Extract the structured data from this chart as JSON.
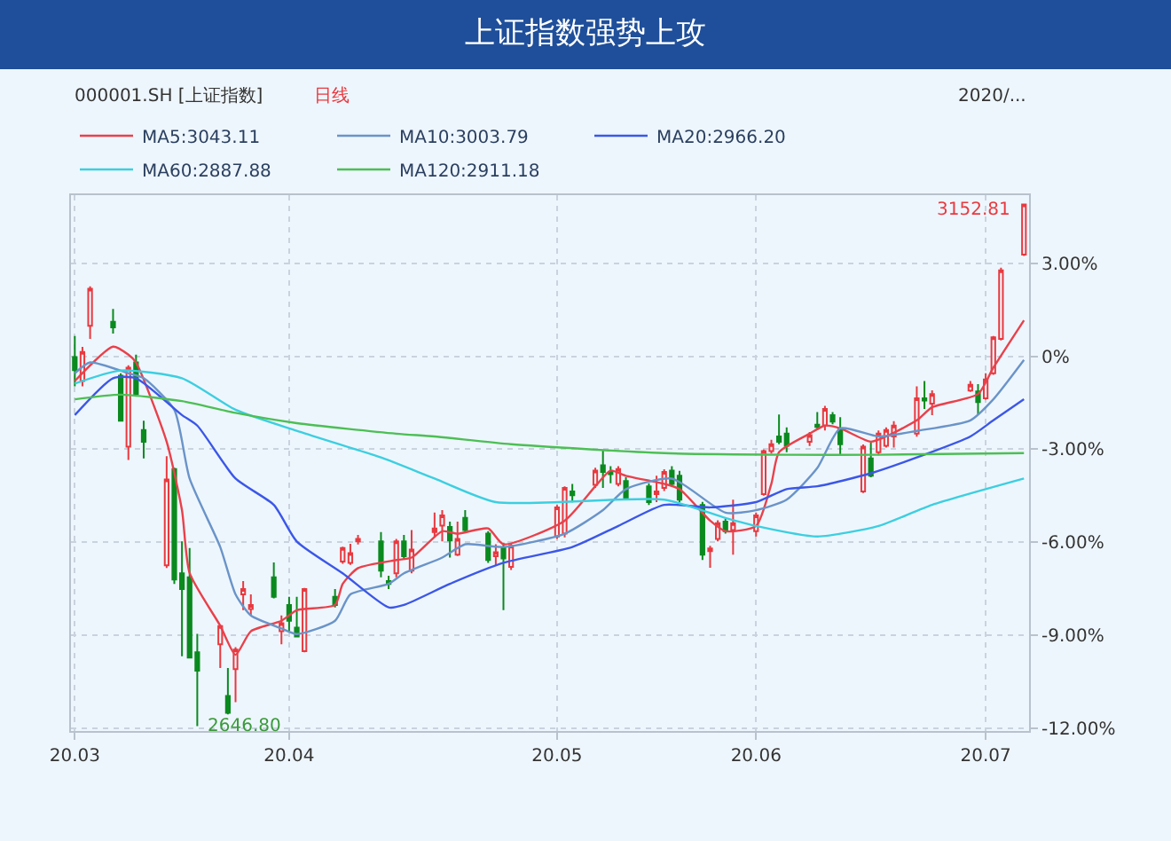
{
  "chart_data": {
    "type": "candlestick",
    "title": "上证指数强势上攻",
    "annotations": [
      "000001.SH [上证指数]",
      "日线",
      "2020/...",
      {
        "text": "3152.81",
        "x": "2020-07-06",
        "y": 4.93
      },
      {
        "text": "2646.80",
        "x": "2020-03-20",
        "y": -11.94
      }
    ],
    "x": [
      "2020-03-04",
      "2020-03-05",
      "2020-03-06",
      "2020-03-09",
      "2020-03-10",
      "2020-03-11",
      "2020-03-12",
      "2020-03-13",
      "2020-03-16",
      "2020-03-17",
      "2020-03-18",
      "2020-03-19",
      "2020-03-20",
      "2020-03-23",
      "2020-03-24",
      "2020-03-25",
      "2020-03-26",
      "2020-03-27",
      "2020-03-30",
      "2020-03-31",
      "2020-04-01",
      "2020-04-02",
      "2020-04-03",
      "2020-04-07",
      "2020-04-08",
      "2020-04-09",
      "2020-04-10",
      "2020-04-13",
      "2020-04-14",
      "2020-04-15",
      "2020-04-16",
      "2020-04-17",
      "2020-04-20",
      "2020-04-21",
      "2020-04-22",
      "2020-04-23",
      "2020-04-24",
      "2020-04-27",
      "2020-04-28",
      "2020-04-29",
      "2020-04-30",
      "2020-05-06",
      "2020-05-07",
      "2020-05-08",
      "2020-05-11",
      "2020-05-12",
      "2020-05-13",
      "2020-05-14",
      "2020-05-15",
      "2020-05-18",
      "2020-05-19",
      "2020-05-20",
      "2020-05-21",
      "2020-05-22",
      "2020-05-25",
      "2020-05-26",
      "2020-05-27",
      "2020-05-28",
      "2020-05-29",
      "2020-06-01",
      "2020-06-02",
      "2020-06-03",
      "2020-06-04",
      "2020-06-05",
      "2020-06-08",
      "2020-06-09",
      "2020-06-10",
      "2020-06-11",
      "2020-06-12",
      "2020-06-15",
      "2020-06-16",
      "2020-06-17",
      "2020-06-18",
      "2020-06-19",
      "2020-06-22",
      "2020-06-23",
      "2020-06-24",
      "2020-06-29",
      "2020-06-30",
      "2020-07-01",
      "2020-07-02",
      "2020-07-03",
      "2020-07-06"
    ],
    "ohlc": [
      [
        -0.03,
        0.65,
        -0.97,
        -0.45
      ],
      [
        -0.8,
        0.3,
        -0.97,
        0.14
      ],
      [
        0.98,
        2.26,
        0.56,
        2.18
      ],
      [
        1.11,
        1.53,
        0.73,
        0.93
      ],
      [
        -0.63,
        -0.55,
        -2.1,
        -2.08
      ],
      [
        -2.92,
        -0.29,
        -3.35,
        -0.37
      ],
      [
        -0.2,
        0.05,
        -1.25,
        -1.22
      ],
      [
        -2.38,
        -2.08,
        -3.3,
        -2.76
      ],
      [
        -6.75,
        -3.23,
        -6.84,
        -3.98
      ],
      [
        -3.64,
        -3.6,
        -7.35,
        -7.21
      ],
      [
        -7.01,
        -5.98,
        -9.69,
        -7.52
      ],
      [
        -7.14,
        -6.19,
        -9.75,
        -9.73
      ],
      [
        -9.56,
        -8.96,
        -11.94,
        -10.15
      ],
      [
        -9.3,
        -8.67,
        -10.07,
        -8.71
      ],
      [
        -10.97,
        -10.07,
        -11.56,
        -11.51
      ],
      [
        -10.1,
        -9.39,
        -11.17,
        -9.47
      ],
      [
        -7.69,
        -7.26,
        -8.2,
        -7.52
      ],
      [
        -8.16,
        -7.69,
        -8.37,
        -8.03
      ],
      [
        -7.14,
        -6.66,
        -7.82,
        -7.77
      ],
      [
        -8.88,
        -8.37,
        -9.3,
        -8.62
      ],
      [
        -8.03,
        -7.77,
        -8.88,
        -8.54
      ],
      [
        -8.76,
        -7.77,
        -9.06,
        -9.05
      ],
      [
        -9.52,
        -7.48,
        -9.56,
        -7.52
      ],
      [
        -7.77,
        -7.52,
        -8.11,
        -8.03
      ],
      [
        -6.63,
        -6.15,
        -6.7,
        -6.19
      ],
      [
        -6.67,
        -6.06,
        -6.74,
        -6.36
      ],
      [
        -5.98,
        -5.77,
        -6.08,
        -5.9
      ],
      [
        -5.98,
        -5.68,
        -7.14,
        -6.92
      ],
      [
        -7.26,
        -7.09,
        -7.52,
        -7.35
      ],
      [
        -7.01,
        -5.9,
        -7.14,
        -5.98
      ],
      [
        -5.98,
        -5.77,
        -6.54,
        -6.46
      ],
      [
        -6.92,
        -5.61,
        -7.01,
        -6.24
      ],
      [
        -5.68,
        -5.05,
        -5.85,
        -5.56
      ],
      [
        -5.47,
        -4.97,
        -5.98,
        -5.14
      ],
      [
        -5.51,
        -5.34,
        -6.5,
        -5.95
      ],
      [
        -6.41,
        -5.34,
        -6.45,
        -5.9
      ],
      [
        -5.22,
        -4.97,
        -5.7,
        -5.61
      ],
      [
        -5.73,
        -5.65,
        -6.67,
        -6.58
      ],
      [
        -6.46,
        -6.07,
        -6.75,
        -6.33
      ],
      [
        -6.19,
        -6.02,
        -8.2,
        -6.53
      ],
      [
        -6.8,
        -6.05,
        -6.9,
        -6.12
      ],
      [
        -5.82,
        -4.8,
        -5.9,
        -4.88
      ],
      [
        -5.73,
        -4.2,
        -5.85,
        -4.25
      ],
      [
        -4.37,
        -4.12,
        -4.72,
        -4.49
      ],
      [
        -4.15,
        -3.6,
        -4.25,
        -3.69
      ],
      [
        -3.52,
        -3.04,
        -4.25,
        -3.74
      ],
      [
        -3.74,
        -3.55,
        -4.1,
        -3.81
      ],
      [
        -4.12,
        -3.55,
        -4.2,
        -3.64
      ],
      [
        -4.03,
        -3.9,
        -4.65,
        -4.59
      ],
      [
        -4.2,
        -4.1,
        -4.8,
        -4.71
      ],
      [
        -4.45,
        -3.86,
        -4.71,
        -4.37
      ],
      [
        -4.25,
        -3.65,
        -4.35,
        -3.74
      ],
      [
        -3.69,
        -3.55,
        -4.2,
        -4.12
      ],
      [
        -3.86,
        -3.7,
        -4.72,
        -4.63
      ],
      [
        -4.8,
        -4.7,
        -6.58,
        -6.41
      ],
      [
        -6.29,
        -6.12,
        -6.83,
        -6.21
      ],
      [
        -5.9,
        -5.3,
        -5.98,
        -5.39
      ],
      [
        -5.34,
        -5.25,
        -5.73,
        -5.65
      ],
      [
        -5.61,
        -4.63,
        -6.41,
        -5.39
      ],
      [
        -5.65,
        -5.05,
        -5.82,
        -5.14
      ],
      [
        -4.45,
        -3.01,
        -4.5,
        -3.06
      ],
      [
        -3.06,
        -2.7,
        -3.14,
        -2.84
      ],
      [
        -2.59,
        -1.88,
        -2.84,
        -2.76
      ],
      [
        -2.5,
        -2.3,
        -3.1,
        -2.89
      ],
      [
        -2.76,
        -2.45,
        -2.9,
        -2.55
      ],
      [
        -2.21,
        -1.8,
        -2.38,
        -2.28
      ],
      [
        -2.24,
        -1.6,
        -2.4,
        -1.7
      ],
      [
        -1.9,
        -1.8,
        -2.2,
        -2.11
      ],
      [
        -2.33,
        -1.97,
        -3.18,
        -2.84
      ],
      [
        -4.37,
        -2.85,
        -4.42,
        -2.92
      ],
      [
        -3.3,
        -2.78,
        -3.91,
        -3.86
      ],
      [
        -3.1,
        -2.4,
        -3.2,
        -2.5
      ],
      [
        -2.89,
        -2.3,
        -2.95,
        -2.38
      ],
      [
        -2.59,
        -2.1,
        -2.95,
        -2.24
      ],
      [
        -2.5,
        -0.97,
        -2.6,
        -1.36
      ],
      [
        -1.36,
        -0.8,
        -1.7,
        -1.43
      ],
      [
        -1.53,
        -1.1,
        -1.9,
        -1.22
      ],
      [
        -1.11,
        -0.8,
        -1.15,
        -0.92
      ],
      [
        -1.14,
        -0.9,
        -1.9,
        -1.48
      ],
      [
        -1.36,
        -0.55,
        -1.4,
        -0.75
      ],
      [
        -0.55,
        0.65,
        -0.6,
        0.61
      ],
      [
        0.56,
        2.86,
        0.51,
        2.77
      ],
      [
        3.28,
        4.93,
        3.24,
        4.9
      ]
    ],
    "series": [
      {
        "name": "MA5:3043.11",
        "type": "line",
        "color": "#e8414b",
        "x": [
          "2020-03-04",
          "2020-03-09",
          "2020-03-11",
          "2020-03-12",
          "2020-03-16",
          "2020-03-18",
          "2020-03-19",
          "2020-03-23",
          "2020-03-25",
          "2020-03-27",
          "2020-03-31",
          "2020-04-02",
          "2020-04-07",
          "2020-04-08",
          "2020-04-10",
          "2020-04-15",
          "2020-04-17",
          "2020-04-21",
          "2020-04-23",
          "2020-04-27",
          "2020-04-29",
          "2020-05-07",
          "2020-05-11",
          "2020-05-13",
          "2020-05-15",
          "2020-05-20",
          "2020-05-22",
          "2020-05-26",
          "2020-05-28",
          "2020-06-01",
          "2020-06-03",
          "2020-06-04",
          "2020-06-08",
          "2020-06-10",
          "2020-06-12",
          "2020-06-16",
          "2020-06-18",
          "2020-06-22",
          "2020-06-24",
          "2020-06-30",
          "2020-07-02",
          "2020-07-06"
        ],
        "values": [
          -0.8,
          0.31,
          0.05,
          -0.2,
          -2.76,
          -4.97,
          -7.0,
          -8.7,
          -9.64,
          -8.88,
          -8.54,
          -8.2,
          -8.03,
          -7.35,
          -6.84,
          -6.58,
          -6.5,
          -5.65,
          -5.73,
          -5.56,
          -6.07,
          -5.31,
          -4.2,
          -3.69,
          -3.86,
          -4.12,
          -4.29,
          -5.31,
          -5.65,
          -5.48,
          -4.12,
          -3.1,
          -2.5,
          -2.24,
          -2.33,
          -2.76,
          -2.59,
          -2.07,
          -1.65,
          -1.22,
          -0.37,
          1.16
        ]
      },
      {
        "name": "MA10:3003.79",
        "type": "line",
        "color": "#6a94c8",
        "x": [
          "2020-03-04",
          "2020-03-06",
          "2020-03-11",
          "2020-03-13",
          "2020-03-17",
          "2020-03-19",
          "2020-03-23",
          "2020-03-25",
          "2020-03-27",
          "2020-03-31",
          "2020-04-02",
          "2020-04-07",
          "2020-04-09",
          "2020-04-14",
          "2020-04-16",
          "2020-04-21",
          "2020-04-24",
          "2020-04-29",
          "2020-05-07",
          "2020-05-12",
          "2020-05-15",
          "2020-05-21",
          "2020-05-28",
          "2020-06-01",
          "2020-06-05",
          "2020-06-09",
          "2020-06-12",
          "2020-06-17",
          "2020-06-22",
          "2020-06-29",
          "2020-07-02",
          "2020-07-06"
        ],
        "values": [
          -0.55,
          -0.2,
          -0.55,
          -0.71,
          -1.73,
          -3.95,
          -6.16,
          -7.69,
          -8.37,
          -8.79,
          -8.97,
          -8.54,
          -7.69,
          -7.35,
          -7.01,
          -6.5,
          -6.07,
          -6.16,
          -5.73,
          -4.97,
          -4.29,
          -3.95,
          -5.05,
          -4.97,
          -4.63,
          -3.61,
          -2.33,
          -2.59,
          -2.41,
          -2.07,
          -1.39,
          -0.12
        ]
      },
      {
        "name": "MA20:2966.20",
        "type": "line",
        "color": "#3b57e8",
        "x": [
          "2020-03-04",
          "2020-03-09",
          "2020-03-12",
          "2020-03-18",
          "2020-03-20",
          "2020-03-25",
          "2020-03-30",
          "2020-04-02",
          "2020-04-08",
          "2020-04-14",
          "2020-04-16",
          "2020-04-22",
          "2020-04-29",
          "2020-05-08",
          "2020-05-14",
          "2020-05-20",
          "2020-05-26",
          "2020-06-01",
          "2020-06-05",
          "2020-06-09",
          "2020-06-16",
          "2020-06-22",
          "2020-06-29",
          "2020-07-02",
          "2020-07-06"
        ],
        "values": [
          -1.9,
          -0.71,
          -0.71,
          -1.9,
          -2.24,
          -3.95,
          -4.8,
          -5.98,
          -7.01,
          -8.11,
          -8.03,
          -7.35,
          -6.67,
          -6.16,
          -5.48,
          -4.8,
          -4.88,
          -4.71,
          -4.29,
          -4.2,
          -3.78,
          -3.27,
          -2.59,
          -2.07,
          -1.39
        ]
      },
      {
        "name": "MA60:2887.88",
        "type": "line",
        "color": "#3ccfe0",
        "x": [
          "2020-03-04",
          "2020-03-10",
          "2020-03-18",
          "2020-03-25",
          "2020-04-02",
          "2020-04-13",
          "2020-04-20",
          "2020-04-28",
          "2020-05-20",
          "2020-05-28",
          "2020-06-01",
          "2020-06-09",
          "2020-06-17",
          "2020-06-24",
          "2020-07-06"
        ],
        "values": [
          -0.88,
          -0.46,
          -0.71,
          -1.73,
          -2.41,
          -3.27,
          -3.95,
          -4.71,
          -4.63,
          -5.22,
          -5.48,
          -5.82,
          -5.48,
          -4.8,
          -3.95
        ]
      },
      {
        "name": "MA120:2911.18",
        "type": "line",
        "color": "#4cbf55",
        "x": [
          "2020-03-04",
          "2020-03-10",
          "2020-03-18",
          "2020-03-25",
          "2020-04-02",
          "2020-04-15",
          "2020-04-20",
          "2020-04-30",
          "2020-05-20",
          "2020-06-05",
          "2020-06-17",
          "2020-07-06"
        ],
        "values": [
          -1.39,
          -1.24,
          -1.45,
          -1.83,
          -2.16,
          -2.5,
          -2.59,
          -2.84,
          -3.13,
          -3.18,
          -3.18,
          -3.13
        ]
      }
    ],
    "xlim": [
      "2020-03-03T12:00",
      "2020-07-06T16:00"
    ],
    "xticks": [
      {
        "value": "2020-03-04",
        "label": "20.03"
      },
      {
        "value": "2020-04-01",
        "label": "20.04"
      },
      {
        "value": "2020-05-06",
        "label": "20.05"
      },
      {
        "value": "2020-06-01",
        "label": "20.06"
      },
      {
        "value": "2020-07-01",
        "label": "20.07"
      }
    ],
    "ylim": [
      -12.1,
      5.2
    ],
    "yticks": [
      {
        "value": 3,
        "label": "3.00%"
      },
      {
        "value": 0,
        "label": "0%"
      },
      {
        "value": -3,
        "label": "-3.00%"
      },
      {
        "value": -6,
        "label": "-6.00%"
      },
      {
        "value": -9,
        "label": "-9.00%"
      },
      {
        "value": -12,
        "label": "-12.00%"
      }
    ],
    "grid": true,
    "legend": "top",
    "marker": "none",
    "line_style": "solid"
  }
}
